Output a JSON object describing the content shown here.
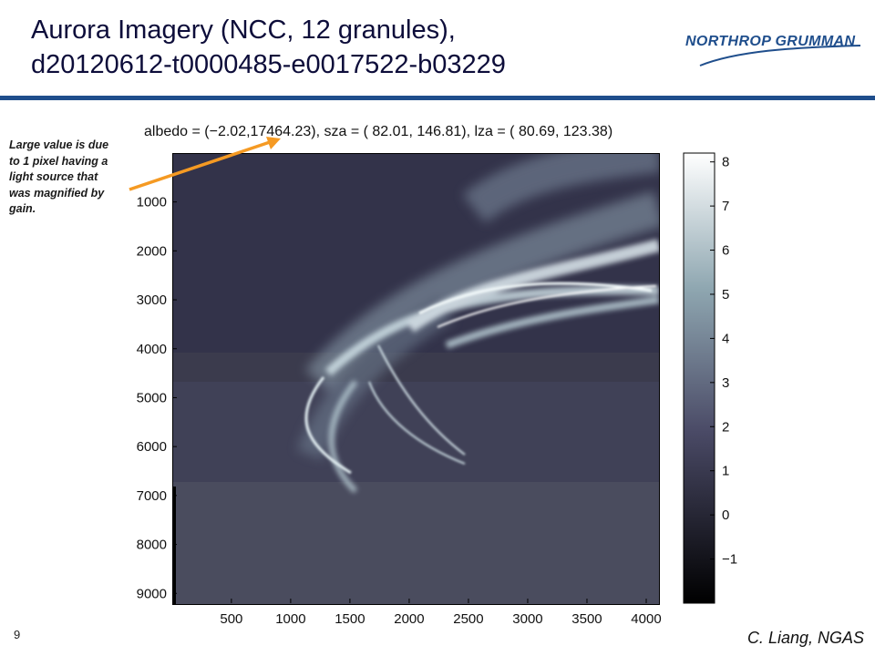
{
  "slide": {
    "title_line1": "Aurora Imagery (NCC, 12 granules),",
    "title_line2": "d20120612-t0000485-e0017522-b03229",
    "logo_text": "NORTHROP GRUMMAN",
    "note": "Large value is due to 1 pixel having a light source that was magnified by gain.",
    "page_number": "9",
    "author": "C. Liang, NGAS",
    "accent_color": "#1f4e8c",
    "arrow_color": "#f59a23"
  },
  "chart_data": {
    "type": "heatmap",
    "title": "albedo = (−2.02,17464.23), sza = (  82.01, 146.81), lza = (  80.69,  123.38)",
    "xlabel": "",
    "ylabel": "",
    "x_ticks": [
      "500",
      "1000",
      "1500",
      "2000",
      "2500",
      "3000",
      "3500",
      "4000"
    ],
    "y_ticks": [
      "1000",
      "2000",
      "3000",
      "4000",
      "5000",
      "6000",
      "7000",
      "8000",
      "9000"
    ],
    "colorbar_ticks": [
      "8",
      "7",
      "6",
      "5",
      "4",
      "3",
      "2",
      "1",
      "0",
      "−1"
    ],
    "x_values": [
      500,
      1000,
      1500,
      2000,
      2500,
      3000,
      3500,
      4000
    ],
    "y_values": [
      1000,
      2000,
      3000,
      4000,
      5000,
      6000,
      7000,
      8000,
      9000
    ],
    "colorbar_values": [
      8,
      7,
      6,
      5,
      4,
      3,
      2,
      1,
      0,
      -1
    ],
    "xlim": [
      1,
      4100
    ],
    "ylim": [
      9200,
      1
    ],
    "colorbar_range": [
      -2,
      8.2
    ],
    "colormap": "bone",
    "grid": false
  }
}
